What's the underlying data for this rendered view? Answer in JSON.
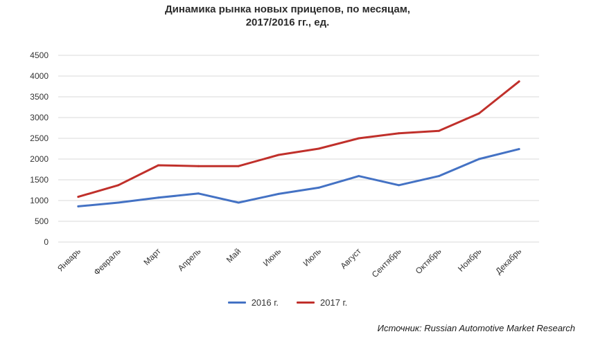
{
  "chart_data": {
    "type": "line",
    "title": "Динамика рынка новых прицепов, по месяцам,",
    "subtitle": "2017/2016 гг., ед.",
    "categories": [
      "Январь",
      "Февраль",
      "Март",
      "Апрель",
      "Май",
      "Июнь",
      "Июль",
      "Август",
      "Сентябрь",
      "Октябрь",
      "Ноябрь",
      "Декабрь"
    ],
    "ylim": [
      0,
      4500
    ],
    "yticks": [
      0,
      500,
      1000,
      1500,
      2000,
      2500,
      3000,
      3500,
      4000,
      4500
    ],
    "grid": true,
    "legend_position": "bottom",
    "series": [
      {
        "name": "2016 г.",
        "color": "#4472C4",
        "values": [
          860,
          950,
          1070,
          1170,
          950,
          1160,
          1310,
          1590,
          1370,
          1590,
          2000,
          2240
        ]
      },
      {
        "name": "2017 г.",
        "color": "#C0302B",
        "values": [
          1090,
          1370,
          1850,
          1830,
          1830,
          2100,
          2250,
          2500,
          2620,
          2680,
          3100,
          3870
        ]
      }
    ]
  },
  "source_text": "Источник: Russian Automotive Market Research"
}
